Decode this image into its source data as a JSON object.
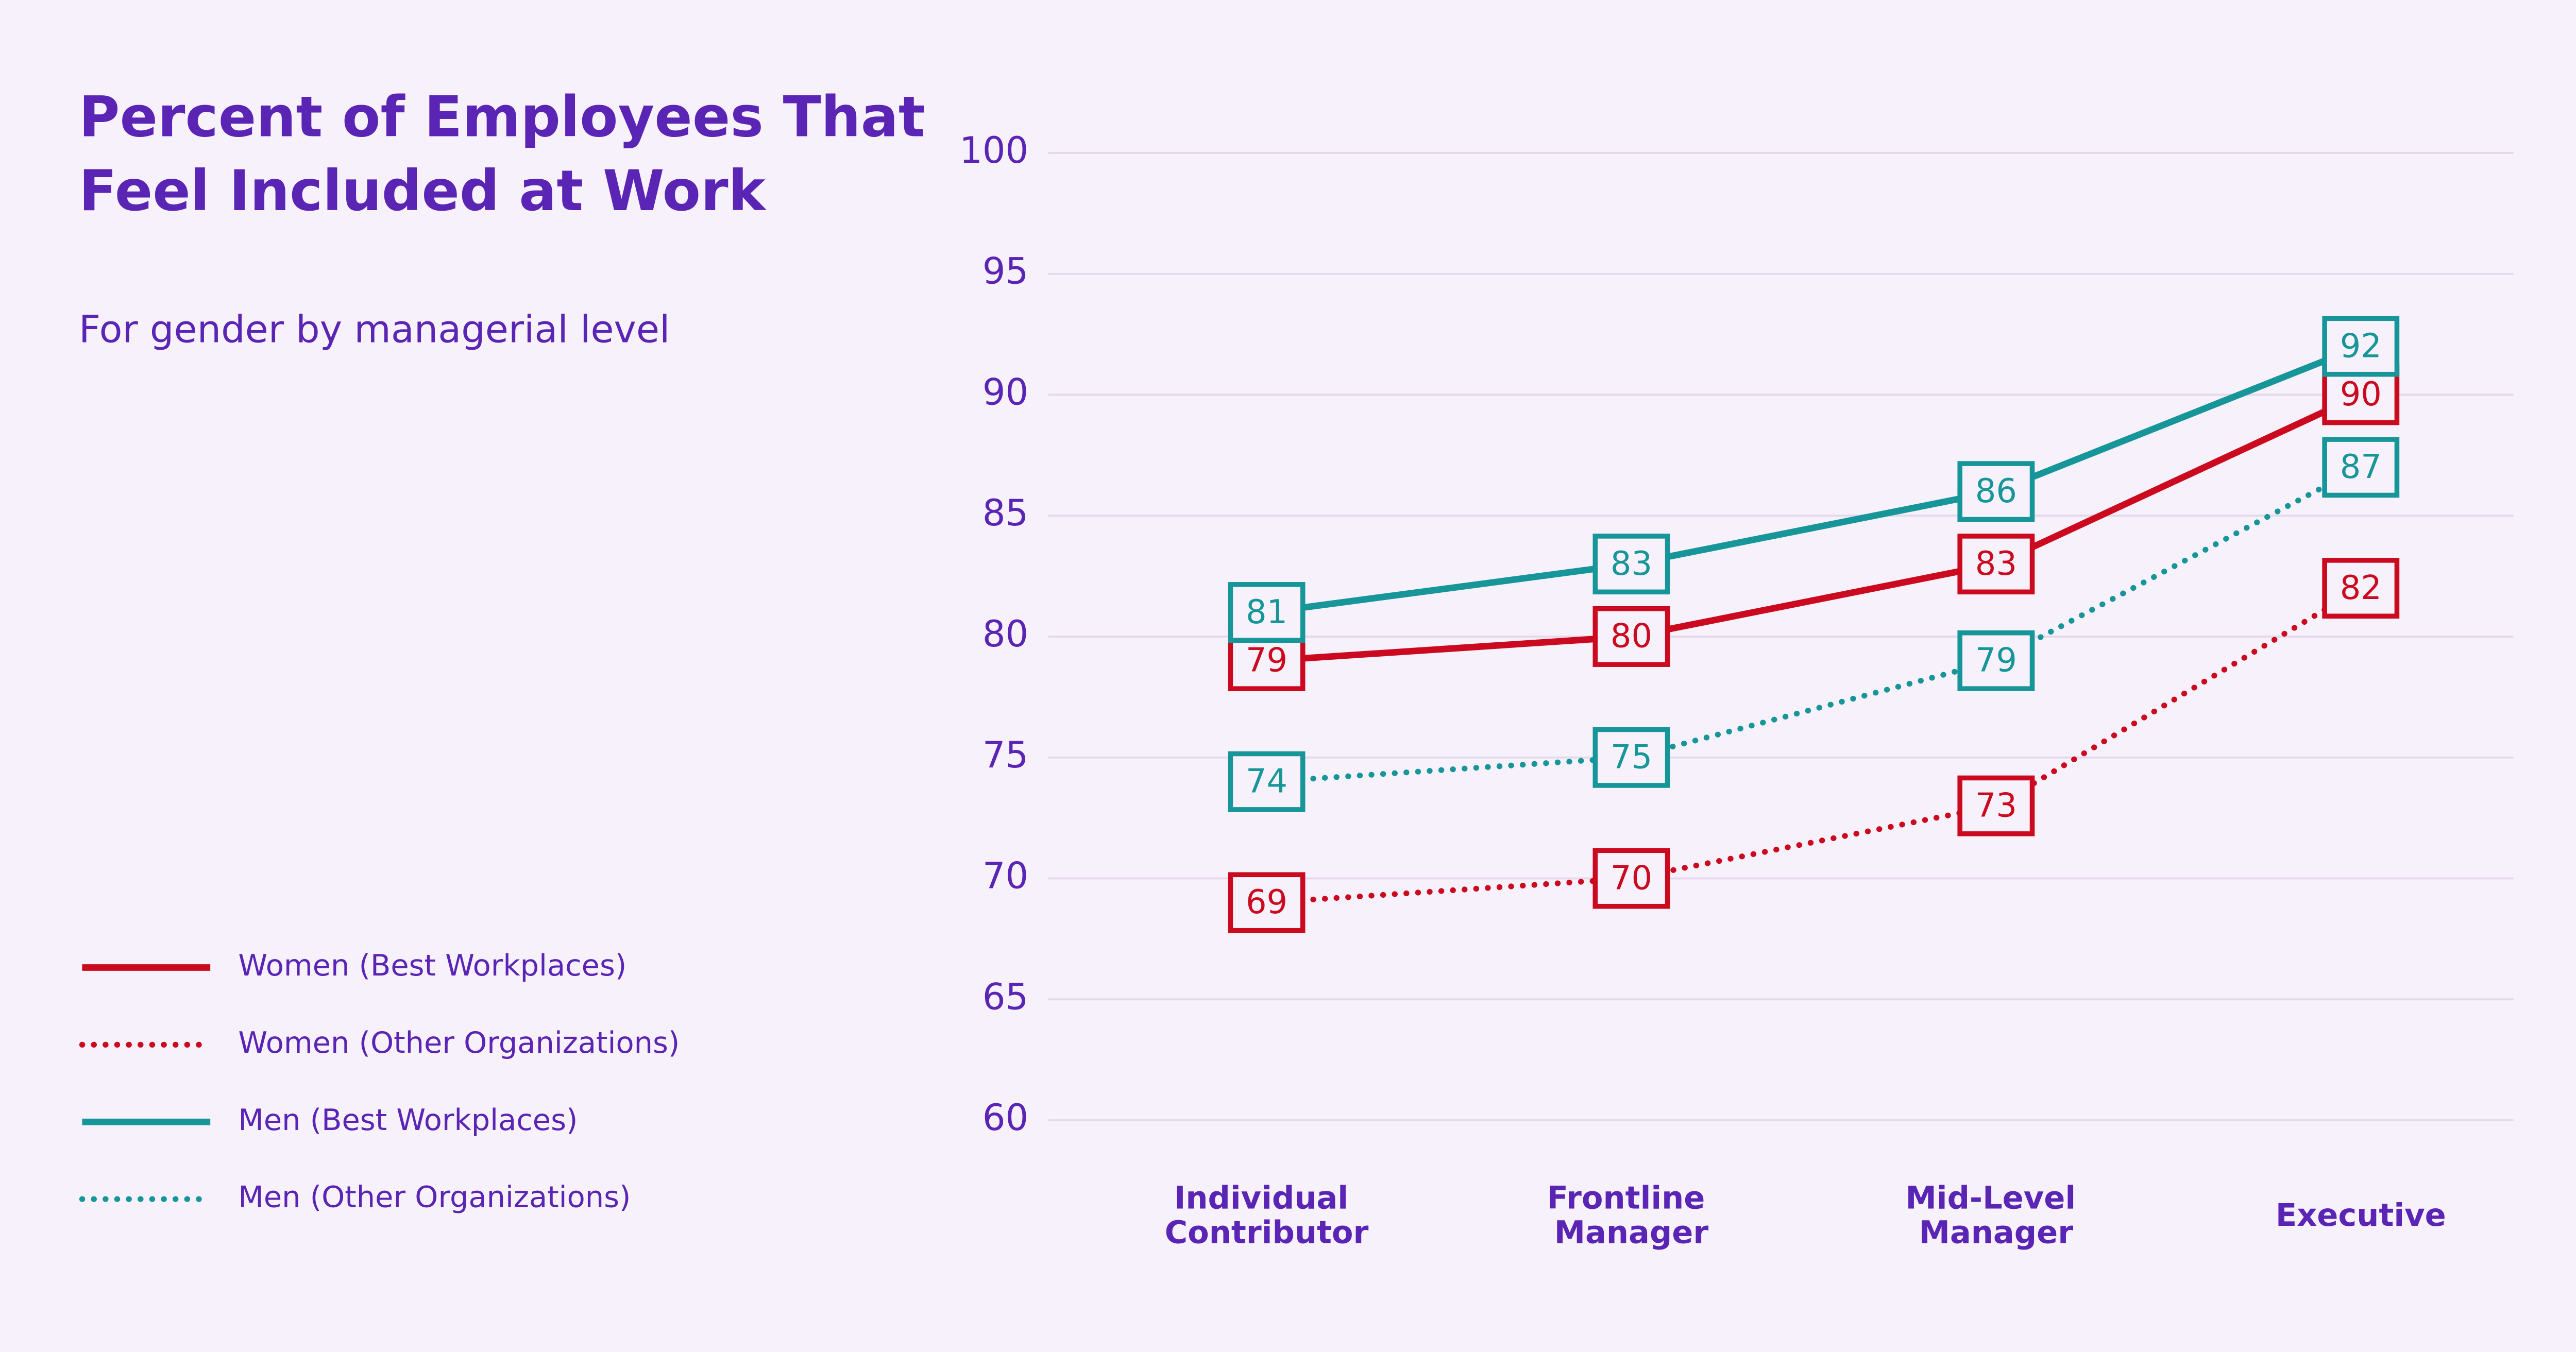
{
  "chart_data": {
    "type": "line",
    "title": "Percent of Employees That Feel Included at Work",
    "subtitle": "For gender by managerial level",
    "categories": [
      "Individual Contributor",
      "Frontline Manager",
      "Mid-Level Manager",
      "Executive"
    ],
    "series": [
      {
        "name": "Women (Best Workplaces)",
        "color": "#cc0a1f",
        "line_style": "solid",
        "values": [
          79,
          80,
          83,
          90
        ]
      },
      {
        "name": "Women (Other Organizations)",
        "color": "#cc0a1f",
        "line_style": "dotted",
        "values": [
          69,
          70,
          73,
          82
        ]
      },
      {
        "name": "Men (Best Workplaces)",
        "color": "#17969a",
        "line_style": "solid",
        "values": [
          81,
          83,
          86,
          92
        ]
      },
      {
        "name": "Men (Other Organizations)",
        "color": "#17969a",
        "line_style": "dotted",
        "values": [
          74,
          75,
          79,
          87
        ]
      }
    ],
    "ylim": [
      60,
      100
    ],
    "yticks": [
      60,
      65,
      70,
      75,
      80,
      85,
      90,
      95,
      100
    ],
    "grid": true,
    "legend": "left"
  }
}
